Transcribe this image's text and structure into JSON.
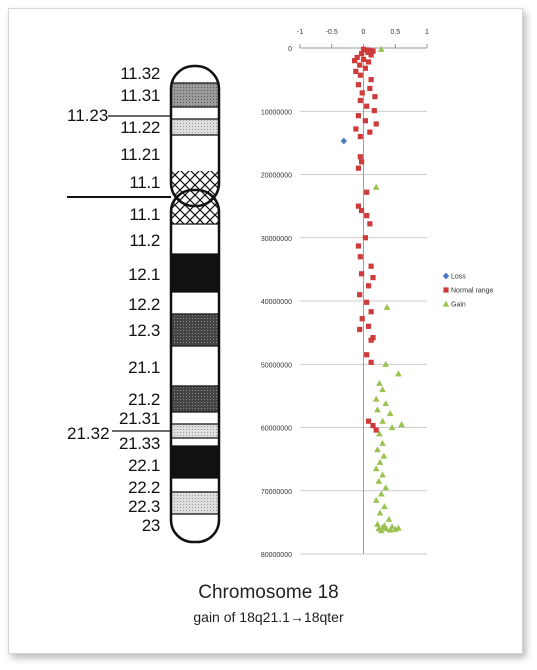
{
  "ideogram": {
    "bands_p": [
      "11.32",
      "11.31",
      "11.22",
      "11.21",
      "11.1"
    ],
    "bands_q": [
      "11.1",
      "11.2",
      "12.1",
      "12.2",
      "12.3",
      "21.1",
      "21.2",
      "21.31",
      "21.33",
      "22.1",
      "22.2",
      "22.3",
      "23"
    ],
    "side_label_p": "11.23",
    "side_label_q": "21.32"
  },
  "caption": {
    "title": "Chromosome 18",
    "subtitle": "gain of 18q21.1→18qter"
  },
  "chart_data": {
    "type": "scatter",
    "x_ticks": [
      "-1",
      "-0.5",
      "0",
      "0.5",
      "1"
    ],
    "y_ticks": [
      "0",
      "10000000",
      "20000000",
      "30000000",
      "40000000",
      "50000000",
      "60000000",
      "70000000",
      "80000000"
    ],
    "xlim": [
      -1,
      1
    ],
    "ylim": [
      0,
      80000000
    ],
    "y_inverted": true,
    "x_axis_position": "top",
    "grid": "horizontal",
    "legend_position": "right",
    "series": [
      {
        "name": "Loss",
        "color": "#4a78c2",
        "marker": "diamond",
        "points": [
          [
            -0.31,
            14700000
          ]
        ]
      },
      {
        "name": "Normal range",
        "color": "#cd3b3b",
        "marker": "square",
        "points": [
          [
            0.0,
            200000
          ],
          [
            0.05,
            300000
          ],
          [
            0.1,
            400000
          ],
          [
            0.15,
            500000
          ],
          [
            0.07,
            700000
          ],
          [
            -0.03,
            900000
          ],
          [
            0.12,
            1100000
          ],
          [
            -0.1,
            1500000
          ],
          [
            0.0,
            1800000
          ],
          [
            -0.14,
            2000000
          ],
          [
            0.08,
            2200000
          ],
          [
            -0.06,
            2700000
          ],
          [
            0.03,
            3200000
          ],
          [
            -0.12,
            3700000
          ],
          [
            -0.05,
            4300000
          ],
          [
            0.12,
            5000000
          ],
          [
            -0.08,
            5800000
          ],
          [
            0.1,
            6400000
          ],
          [
            -0.02,
            7100000
          ],
          [
            0.18,
            7700000
          ],
          [
            -0.05,
            8300000
          ],
          [
            0.05,
            9200000
          ],
          [
            0.17,
            9900000
          ],
          [
            -0.08,
            10700000
          ],
          [
            0.03,
            11500000
          ],
          [
            0.2,
            12000000
          ],
          [
            -0.12,
            12800000
          ],
          [
            0.1,
            13300000
          ],
          [
            -0.05,
            14000000
          ],
          [
            -0.05,
            17200000
          ],
          [
            -0.03,
            18000000
          ],
          [
            -0.08,
            19000000
          ],
          [
            0.05,
            22800000
          ],
          [
            -0.08,
            25000000
          ],
          [
            -0.03,
            25700000
          ],
          [
            0.05,
            26500000
          ],
          [
            0.1,
            27800000
          ],
          [
            0.03,
            30000000
          ],
          [
            -0.08,
            31300000
          ],
          [
            -0.05,
            33000000
          ],
          [
            0.12,
            34500000
          ],
          [
            -0.03,
            35700000
          ],
          [
            0.15,
            36300000
          ],
          [
            0.08,
            37600000
          ],
          [
            -0.06,
            39000000
          ],
          [
            0.05,
            40200000
          ],
          [
            0.12,
            41700000
          ],
          [
            -0.02,
            42800000
          ],
          [
            0.08,
            44000000
          ],
          [
            -0.06,
            44500000
          ],
          [
            0.15,
            45800000
          ],
          [
            0.12,
            46200000
          ],
          [
            0.05,
            48500000
          ],
          [
            0.12,
            49700000
          ],
          [
            0.08,
            59000000
          ],
          [
            0.15,
            59700000
          ],
          [
            0.2,
            60400000
          ]
        ]
      },
      {
        "name": "Gain",
        "color": "#9ac24f",
        "marker": "triangle",
        "points": [
          [
            0.28,
            200000
          ],
          [
            0.2,
            22000000
          ],
          [
            0.37,
            41000000
          ],
          [
            0.35,
            50000000
          ],
          [
            0.55,
            51500000
          ],
          [
            0.25,
            53000000
          ],
          [
            0.3,
            54000000
          ],
          [
            0.2,
            55500000
          ],
          [
            0.35,
            56200000
          ],
          [
            0.22,
            57200000
          ],
          [
            0.42,
            57800000
          ],
          [
            0.3,
            59000000
          ],
          [
            0.6,
            59500000
          ],
          [
            0.45,
            60000000
          ],
          [
            0.25,
            61000000
          ],
          [
            0.3,
            62500000
          ],
          [
            0.22,
            63500000
          ],
          [
            0.32,
            64500000
          ],
          [
            0.26,
            65500000
          ],
          [
            0.2,
            66500000
          ],
          [
            0.3,
            67500000
          ],
          [
            0.24,
            68500000
          ],
          [
            0.35,
            69500000
          ],
          [
            0.28,
            70500000
          ],
          [
            0.2,
            71500000
          ],
          [
            0.33,
            72500000
          ],
          [
            0.26,
            73500000
          ],
          [
            0.4,
            74500000
          ],
          [
            0.22,
            75300000
          ],
          [
            0.3,
            75800000
          ],
          [
            0.36,
            76000000
          ],
          [
            0.45,
            75700000
          ],
          [
            0.5,
            76100000
          ],
          [
            0.55,
            75900000
          ],
          [
            0.28,
            76300000
          ],
          [
            0.33,
            75500000
          ],
          [
            0.42,
            76200000
          ],
          [
            0.24,
            76000000
          ]
        ]
      }
    ]
  }
}
